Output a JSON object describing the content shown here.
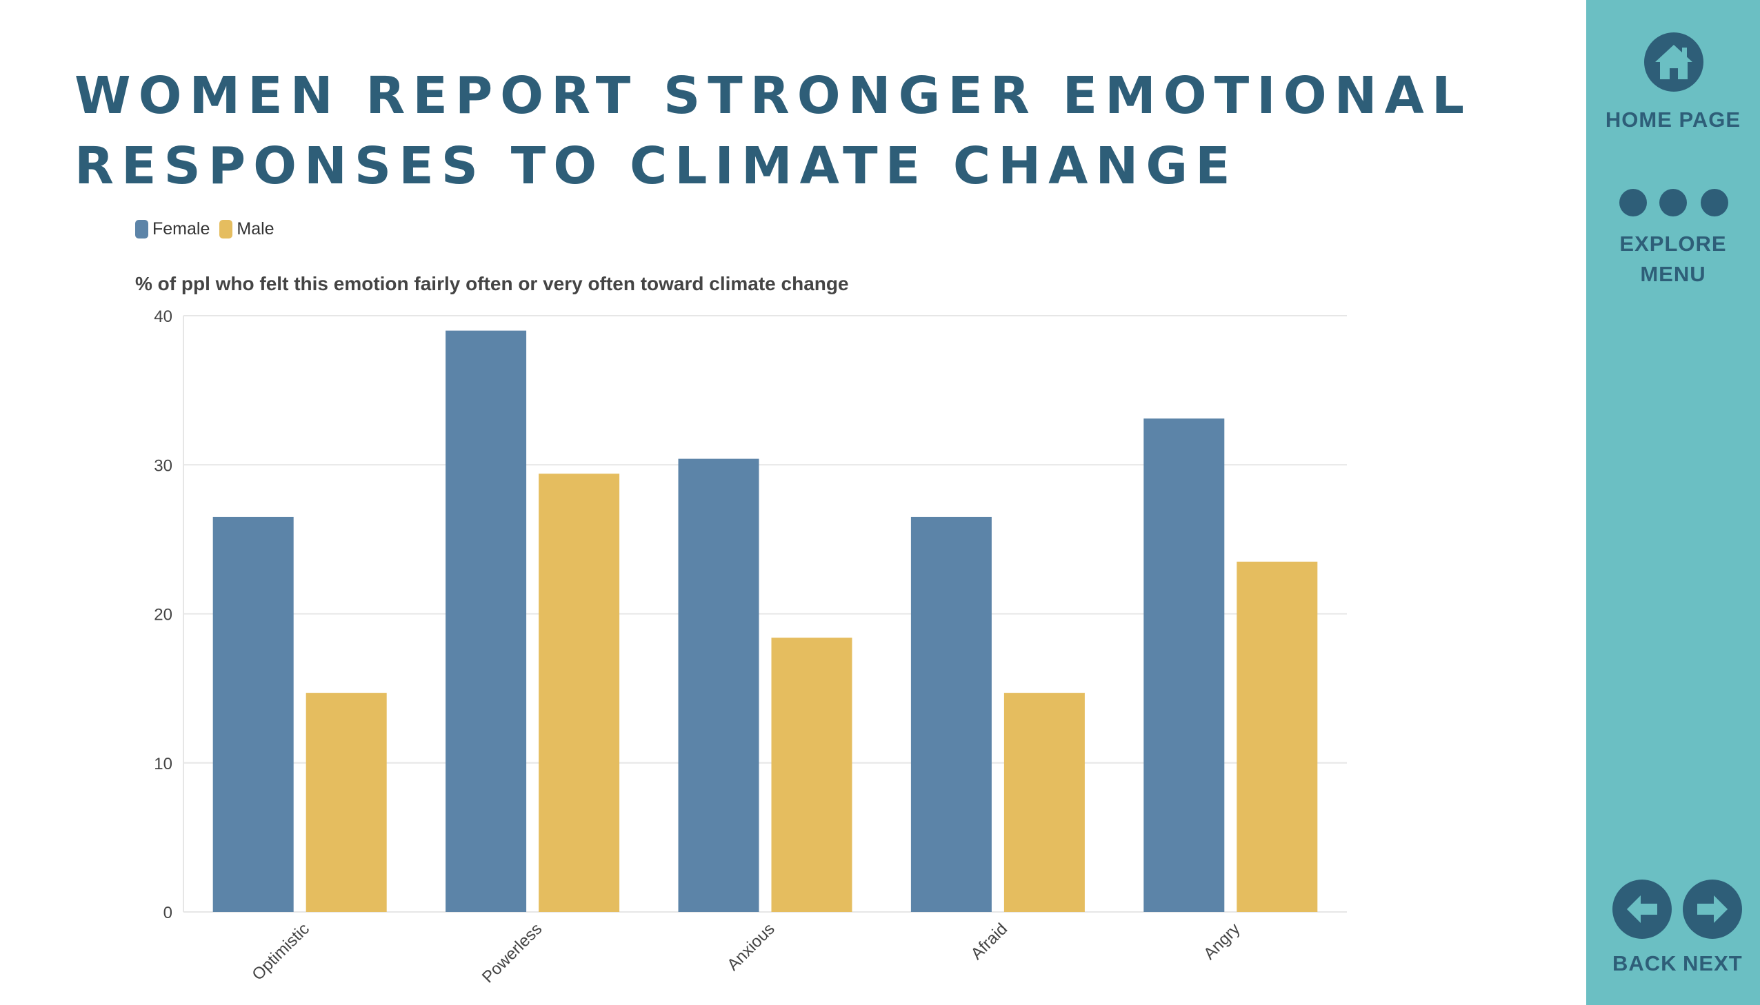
{
  "page": {
    "title": "Women report stronger emotional responses to climate change"
  },
  "colors": {
    "female": "#5c84a8",
    "male": "#e5bd5f",
    "title": "#2e5e78",
    "sidebar": "#6bbfc3",
    "grid": "#e6e6e6"
  },
  "chart_data": {
    "type": "bar",
    "title": "",
    "ylabel": "% of ppl who felt this emotion fairly often or very often toward climate change",
    "xlabel": "",
    "categories": [
      "Optimistic",
      "Powerless",
      "Anxious",
      "Afraid",
      "Angry"
    ],
    "series": [
      {
        "name": "Female",
        "values": [
          26.5,
          39,
          30.4,
          26.5,
          33.1
        ]
      },
      {
        "name": "Male",
        "values": [
          14.7,
          29.4,
          18.4,
          14.7,
          23.5
        ]
      }
    ],
    "ylim": [
      0,
      40
    ],
    "yticks": [
      0,
      10,
      20,
      30,
      40
    ],
    "grid": true,
    "legend_position": "top-left"
  },
  "sidebar": {
    "home_label": "HOME PAGE",
    "home_icon": "home-icon",
    "explore_label_line1": "EXPLORE",
    "explore_label_line2": "MENU",
    "back_label": "BACK",
    "next_label": "NEXT",
    "back_icon": "arrow-left-icon",
    "next_icon": "arrow-right-icon"
  }
}
